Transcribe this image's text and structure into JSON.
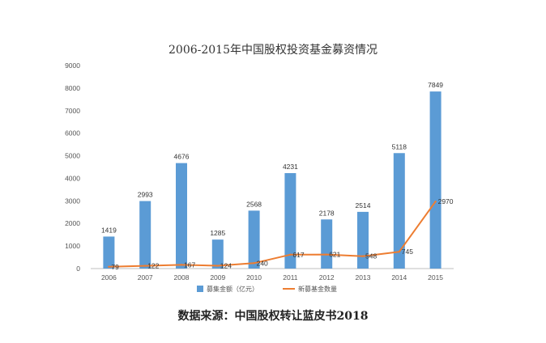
{
  "chart_data": {
    "type": "bar",
    "title": "2006-2015年中国股权投资基金募资情况",
    "categories": [
      "2006",
      "2007",
      "2008",
      "2009",
      "2010",
      "2011",
      "2012",
      "2013",
      "2014",
      "2015"
    ],
    "ylim": [
      0,
      9000
    ],
    "yticks": [
      "0",
      "1000",
      "2000",
      "3000",
      "4000",
      "5000",
      "6000",
      "7000",
      "8000",
      "9000"
    ],
    "grid": false,
    "legend_position": "bottom",
    "series": [
      {
        "name": "募集金额（亿元）",
        "type": "bar",
        "color": "#5b9bd5",
        "values": [
          1419,
          2993,
          4676,
          1285,
          2568,
          4231,
          2178,
          2514,
          5118,
          7849
        ]
      },
      {
        "name": "新募基金数量",
        "type": "line",
        "color": "#ed7d31",
        "values": [
          79,
          122,
          167,
          124,
          240,
          617,
          621,
          548,
          745,
          2970
        ]
      }
    ]
  },
  "source_text": "数据来源：中国股权转让蓝皮书2018"
}
